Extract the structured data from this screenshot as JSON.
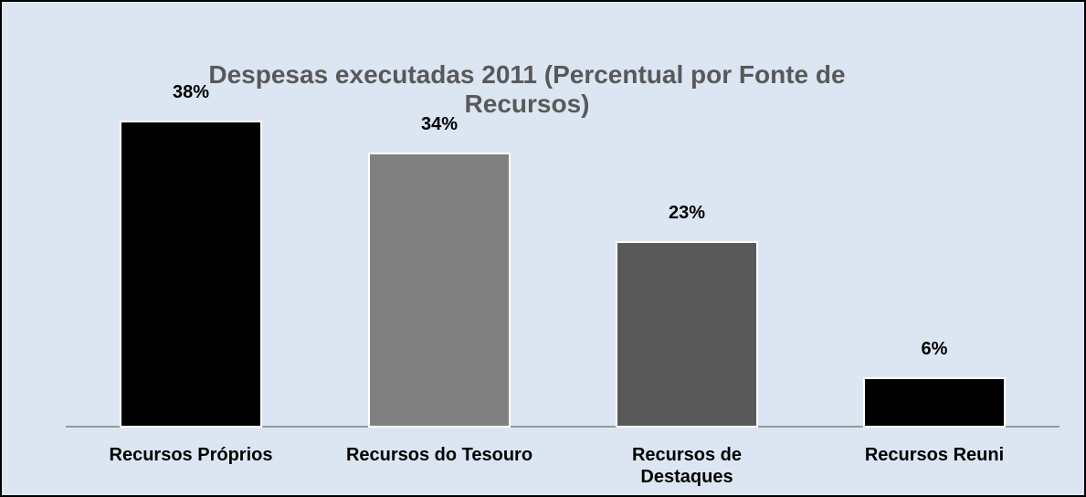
{
  "chart_data": {
    "type": "bar",
    "title": "Despesas executadas 2011 (Percentual por Fonte de Recursos)",
    "categories": [
      "Recursos Próprios",
      "Recursos do Tesouro",
      "Recursos de Destaques",
      "Recursos Reuni"
    ],
    "values": [
      38,
      34,
      23,
      6
    ],
    "value_labels": [
      "38%",
      "34%",
      "23%",
      "6%"
    ],
    "colors": [
      "#000000",
      "#808080",
      "#595959",
      "#000000"
    ]
  }
}
